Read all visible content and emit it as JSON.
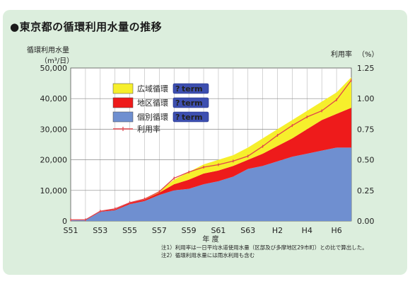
{
  "title": "●東京都の循環利用水量の推移",
  "chart_data": {
    "type": "area",
    "title": "●東京都の循環利用水量の推移",
    "ylabel": "循環利用水量",
    "ylabel_unit": "（m³/日）",
    "y2label": "利用率",
    "y2label_unit": "（%）",
    "xlabel": "年 度",
    "ylim": [
      0,
      50000
    ],
    "y2lim": [
      0,
      1.25
    ],
    "yticks": [
      "0",
      "10,000",
      "20,000",
      "30,000",
      "40,000",
      "50,000"
    ],
    "y2ticks": [
      "0.00",
      "0.25",
      "0.50",
      "0.75",
      "1.00",
      "1.25"
    ],
    "x_index": [
      0,
      1,
      2,
      3,
      4,
      5,
      6,
      7,
      8,
      9,
      10,
      11,
      12,
      13,
      14,
      15,
      16,
      17,
      18,
      19
    ],
    "xtick_labels": [
      "S51",
      "S53",
      "S55",
      "S57",
      "S59",
      "S61",
      "S63",
      "H2",
      "H4",
      "H6"
    ],
    "xtick_index": [
      0,
      2,
      4,
      6,
      8,
      10,
      12,
      14,
      16,
      18
    ],
    "series": [
      {
        "name": "個別循環",
        "color": "#6f8fd0",
        "values": [
          200,
          300,
          3000,
          3500,
          5500,
          6500,
          8500,
          10000,
          10500,
          12000,
          13000,
          14500,
          17000,
          18000,
          19500,
          21000,
          22000,
          23000,
          24000,
          24000
        ]
      },
      {
        "name": "地区循環",
        "color": "#ee1b1b",
        "values": [
          0,
          0,
          200,
          300,
          400,
          500,
          800,
          2000,
          3000,
          3500,
          3500,
          3500,
          3000,
          4000,
          5000,
          6000,
          8000,
          10000,
          11000,
          13000
        ]
      },
      {
        "name": "広域循環",
        "color": "#f6ef2c",
        "values": [
          0,
          0,
          0,
          0,
          0,
          0,
          500,
          1500,
          2500,
          3000,
          3500,
          3500,
          4000,
          5000,
          5500,
          6000,
          6000,
          6000,
          7000,
          10000
        ]
      }
    ],
    "ratio": {
      "name": "利用率",
      "color": "#e0444b",
      "values": [
        0.01,
        0.01,
        0.08,
        0.1,
        0.15,
        0.18,
        0.24,
        0.35,
        0.4,
        0.44,
        0.46,
        0.49,
        0.53,
        0.61,
        0.7,
        0.78,
        0.85,
        0.9,
        0.99,
        1.15
      ]
    },
    "legend": {
      "position": "top-left",
      "entries": [
        "広域循環",
        "地区循環",
        "個別循環",
        "利用率"
      ],
      "badge": "term"
    },
    "grid": true,
    "notes": [
      "注1）利用率は一日平均水道使用水量（区部及び多摩地区29市町）との比で算出した。",
      "注2）循環利用水量には雨水利用も含む"
    ]
  }
}
